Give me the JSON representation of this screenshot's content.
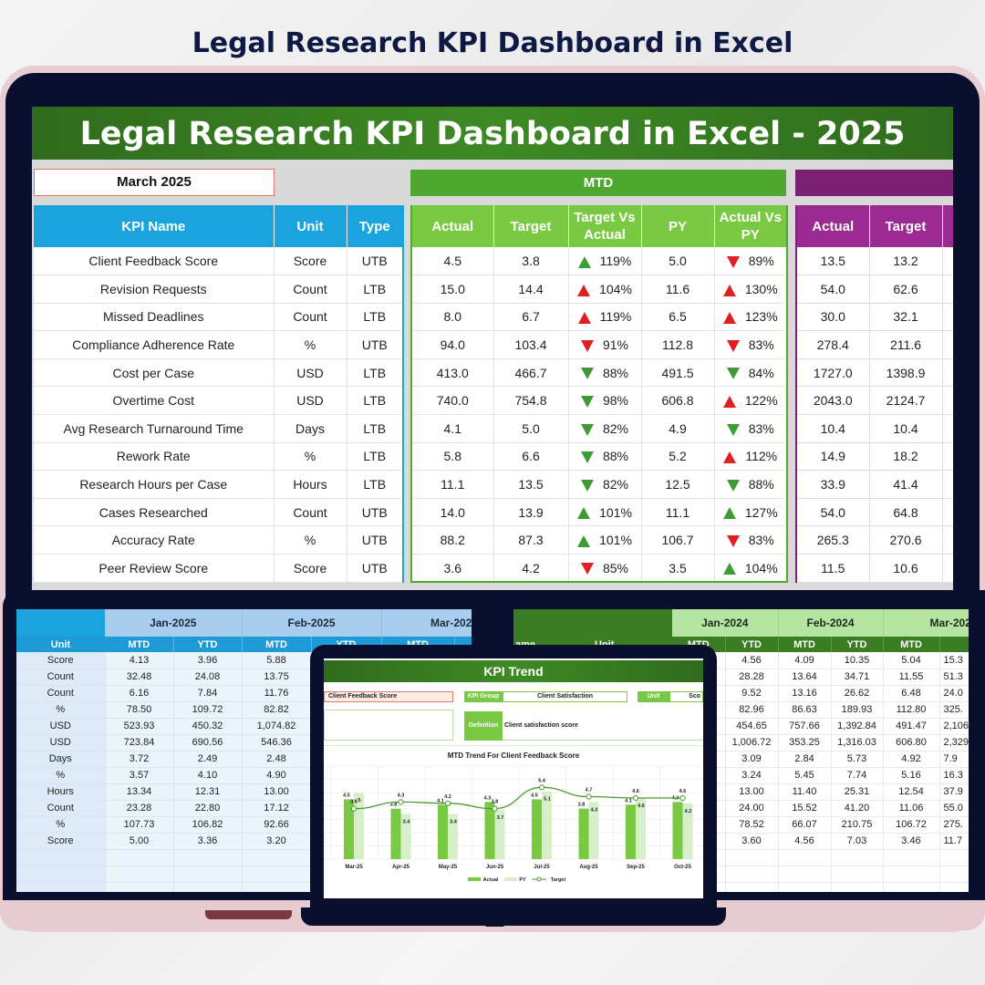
{
  "page_title": "Legal Research KPI Dashboard in Excel",
  "dashboard": {
    "banner": "Legal Research KPI Dashboard in Excel - 2025",
    "month": "March 2025",
    "mtd_label": "MTD",
    "headers": {
      "kpi_name": "KPI Name",
      "unit": "Unit",
      "type": "Type",
      "actual": "Actual",
      "target": "Target",
      "target_vs_actual": "Target Vs Actual",
      "py": "PY",
      "actual_vs_py": "Actual Vs PY"
    },
    "colors": {
      "up_good": "#3f9b35",
      "bad": "#e02020",
      "blue": "#1aa3dd",
      "green": "#4ea72e",
      "purple": "#7b2072"
    },
    "rows": [
      {
        "name": "Client Feedback Score",
        "unit": "Score",
        "type": "UTB",
        "actual": "4.5",
        "target": "3.8",
        "tva_dir": "up",
        "tva_status": "good",
        "tva": "119%",
        "py": "5.0",
        "avp_dir": "down",
        "avp_status": "bad",
        "avp": "89%",
        "ytd_actual": "13.5",
        "ytd_target": "13.2"
      },
      {
        "name": "Revision Requests",
        "unit": "Count",
        "type": "LTB",
        "actual": "15.0",
        "target": "14.4",
        "tva_dir": "up",
        "tva_status": "bad",
        "tva": "104%",
        "py": "11.6",
        "avp_dir": "up",
        "avp_status": "bad",
        "avp": "130%",
        "ytd_actual": "54.0",
        "ytd_target": "62.6"
      },
      {
        "name": "Missed Deadlines",
        "unit": "Count",
        "type": "LTB",
        "actual": "8.0",
        "target": "6.7",
        "tva_dir": "up",
        "tva_status": "bad",
        "tva": "119%",
        "py": "6.5",
        "avp_dir": "up",
        "avp_status": "bad",
        "avp": "123%",
        "ytd_actual": "30.0",
        "ytd_target": "32.1"
      },
      {
        "name": "Compliance Adherence Rate",
        "unit": "%",
        "type": "UTB",
        "actual": "94.0",
        "target": "103.4",
        "tva_dir": "down",
        "tva_status": "bad",
        "tva": "91%",
        "py": "112.8",
        "avp_dir": "down",
        "avp_status": "bad",
        "avp": "83%",
        "ytd_actual": "278.4",
        "ytd_target": "211.6"
      },
      {
        "name": "Cost per Case",
        "unit": "USD",
        "type": "LTB",
        "actual": "413.0",
        "target": "466.7",
        "tva_dir": "down",
        "tva_status": "good",
        "tva": "88%",
        "py": "491.5",
        "avp_dir": "down",
        "avp_status": "good",
        "avp": "84%",
        "ytd_actual": "1727.0",
        "ytd_target": "1398.9"
      },
      {
        "name": "Overtime Cost",
        "unit": "USD",
        "type": "LTB",
        "actual": "740.0",
        "target": "754.8",
        "tva_dir": "down",
        "tva_status": "good",
        "tva": "98%",
        "py": "606.8",
        "avp_dir": "up",
        "avp_status": "bad",
        "avp": "122%",
        "ytd_actual": "2043.0",
        "ytd_target": "2124.7"
      },
      {
        "name": "Avg Research Turnaround Time",
        "unit": "Days",
        "type": "LTB",
        "actual": "4.1",
        "target": "5.0",
        "tva_dir": "down",
        "tva_status": "good",
        "tva": "82%",
        "py": "4.9",
        "avp_dir": "down",
        "avp_status": "good",
        "avp": "83%",
        "ytd_actual": "10.4",
        "ytd_target": "10.4"
      },
      {
        "name": "Rework Rate",
        "unit": "%",
        "type": "LTB",
        "actual": "5.8",
        "target": "6.6",
        "tva_dir": "down",
        "tva_status": "good",
        "tva": "88%",
        "py": "5.2",
        "avp_dir": "up",
        "avp_status": "bad",
        "avp": "112%",
        "ytd_actual": "14.9",
        "ytd_target": "18.2"
      },
      {
        "name": "Research Hours per Case",
        "unit": "Hours",
        "type": "LTB",
        "actual": "11.1",
        "target": "13.5",
        "tva_dir": "down",
        "tva_status": "good",
        "tva": "82%",
        "py": "12.5",
        "avp_dir": "down",
        "avp_status": "good",
        "avp": "88%",
        "ytd_actual": "33.9",
        "ytd_target": "41.4"
      },
      {
        "name": "Cases Researched",
        "unit": "Count",
        "type": "UTB",
        "actual": "14.0",
        "target": "13.9",
        "tva_dir": "up",
        "tva_status": "good",
        "tva": "101%",
        "py": "11.1",
        "avp_dir": "up",
        "avp_status": "good",
        "avp": "127%",
        "ytd_actual": "54.0",
        "ytd_target": "64.8"
      },
      {
        "name": "Accuracy Rate",
        "unit": "%",
        "type": "UTB",
        "actual": "88.2",
        "target": "87.3",
        "tva_dir": "up",
        "tva_status": "good",
        "tva": "101%",
        "py": "106.7",
        "avp_dir": "down",
        "avp_status": "bad",
        "avp": "83%",
        "ytd_actual": "265.3",
        "ytd_target": "270.6"
      },
      {
        "name": "Peer Review Score",
        "unit": "Score",
        "type": "UTB",
        "actual": "3.6",
        "target": "4.2",
        "tva_dir": "down",
        "tva_status": "bad",
        "tva": "85%",
        "py": "3.5",
        "avp_dir": "up",
        "avp_status": "good",
        "avp": "104%",
        "ytd_actual": "11.5",
        "ytd_target": "10.6"
      }
    ]
  },
  "monthly_2025": {
    "months": [
      "Jan-2025",
      "Feb-2025",
      "Mar-2025"
    ],
    "unit_label": "Unit",
    "mtd": "MTD",
    "ytd": "YTD",
    "rows": [
      [
        "Score",
        "4.13",
        "3.96",
        "5.88"
      ],
      [
        "Count",
        "32.48",
        "24.08",
        "13.75"
      ],
      [
        "Count",
        "6.16",
        "7.84",
        "11.76"
      ],
      [
        "%",
        "78.50",
        "109.72",
        "82.82"
      ],
      [
        "USD",
        "523.93",
        "450.32",
        "1,074.82"
      ],
      [
        "USD",
        "723.84",
        "690.56",
        "546.36"
      ],
      [
        "Days",
        "3.72",
        "2.49",
        "2.48"
      ],
      [
        "%",
        "3.57",
        "4.10",
        "4.90"
      ],
      [
        "Hours",
        "13.34",
        "12.31",
        "13.00"
      ],
      [
        "Count",
        "23.28",
        "22.80",
        "17.12"
      ],
      [
        "%",
        "107.73",
        "106.82",
        "92.66"
      ],
      [
        "Score",
        "5.00",
        "3.36",
        "3.20"
      ]
    ]
  },
  "monthly_2024": {
    "months": [
      "Jan-2024",
      "Feb-2024",
      "Mar-2024"
    ],
    "name_label": "ame",
    "unit_label": "Unit",
    "mtd": "MTD",
    "ytd": "YTD",
    "rows": [
      [
        "4.56",
        "4.09",
        "10.35",
        "5.04",
        "15.3"
      ],
      [
        "28.28",
        "13.64",
        "34.71",
        "11.55",
        "51.3"
      ],
      [
        "9.52",
        "13.16",
        "26.62",
        "6.48",
        "24.0"
      ],
      [
        "82.96",
        "86.63",
        "189.93",
        "112.80",
        "325."
      ],
      [
        "454.65",
        "757.66",
        "1,392.84",
        "491.47",
        "2,106"
      ],
      [
        "1,006.72",
        "353.25",
        "1,316.03",
        "606.80",
        "2,329"
      ],
      [
        "3.09",
        "2.84",
        "5.73",
        "4.92",
        "7.9"
      ],
      [
        "3.24",
        "5.45",
        "7.74",
        "5.16",
        "16.3"
      ],
      [
        "13.00",
        "11.40",
        "25.31",
        "12.54",
        "37.9"
      ],
      [
        "24.00",
        "15.52",
        "41.20",
        "11.06",
        "55.0"
      ],
      [
        "78.52",
        "66.07",
        "210.75",
        "106.72",
        "275."
      ],
      [
        "3.60",
        "4.56",
        "7.03",
        "3.46",
        "11.7"
      ]
    ]
  },
  "kpi_trend": {
    "title": "KPI Trend",
    "kpi_select": "Client Feedback Score",
    "kpi_group_label": "KPI Group",
    "kpi_group": "Client Satisfaction",
    "unit_label": "Unit",
    "unit": "Sco",
    "definition_label": "Definition",
    "definition": "Client satisfaction score",
    "chart_data": {
      "type": "bar",
      "title": "MTD Trend For Client Feedback Score",
      "categories": [
        "Mar-25",
        "Apr-25",
        "May-25",
        "Jun-25",
        "Jul-25",
        "Aug-25",
        "Sep-25",
        "Oct-25"
      ],
      "series": [
        {
          "name": "Actual",
          "type": "bar",
          "color": "#7ac943",
          "values": [
            4.5,
            3.8,
            4.1,
            4.3,
            4.5,
            3.8,
            4.1,
            4.3
          ]
        },
        {
          "name": "PY",
          "type": "bar",
          "color": "#d7efc9",
          "values": [
            5.0,
            3.4,
            3.4,
            3.7,
            5.1,
            4.3,
            4.6,
            4.2
          ]
        },
        {
          "name": "Target",
          "type": "line",
          "color": "#4e9a32",
          "values": [
            3.8,
            4.3,
            4.2,
            3.8,
            5.4,
            4.7,
            4.6,
            4.6
          ]
        }
      ],
      "ylim": [
        0,
        7
      ],
      "grid": true,
      "legend": "bottom"
    }
  }
}
